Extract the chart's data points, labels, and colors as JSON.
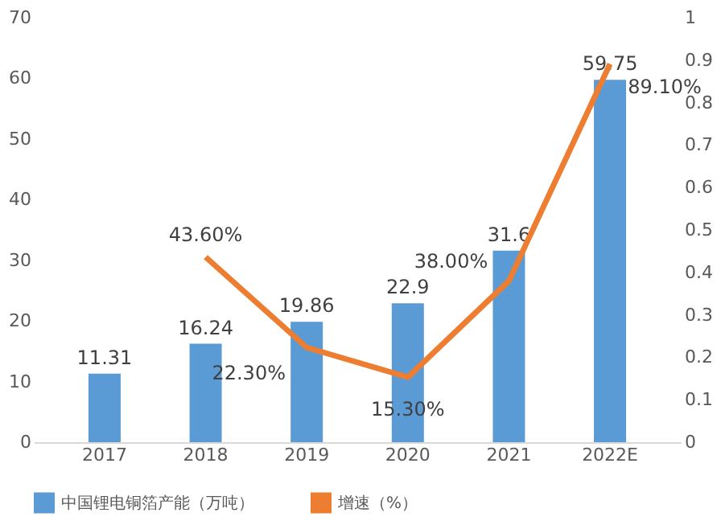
{
  "chart_data": {
    "type": "bar",
    "categories": [
      "2017",
      "2018",
      "2019",
      "2020",
      "2021",
      "2022E"
    ],
    "series": [
      {
        "name": "中国锂电铜箔产能（万吨）",
        "type": "bar",
        "color": "#5b9bd5",
        "values": [
          11.31,
          16.24,
          19.86,
          22.9,
          31.6,
          59.75
        ]
      },
      {
        "name": "增速（%）",
        "type": "line",
        "axis": "y2",
        "color": "#ed7d31",
        "values": [
          null,
          0.436,
          0.223,
          0.153,
          0.38,
          0.891
        ],
        "value_labels": [
          null,
          "43.60%",
          "22.30%",
          "15.30%",
          "38.00%",
          "89.10%"
        ]
      }
    ],
    "data_labels": true,
    "ylim": [
      0,
      70
    ],
    "yticks": [
      0,
      10,
      20,
      30,
      40,
      50,
      60,
      70
    ],
    "y2lim": [
      0,
      1
    ],
    "y2ticks": [
      0,
      0.1,
      0.2,
      0.3,
      0.4,
      0.5,
      0.6,
      0.7,
      0.8,
      0.9,
      1
    ],
    "grid": false,
    "legend": "bottom",
    "marker": "none",
    "line_style": "solid"
  }
}
